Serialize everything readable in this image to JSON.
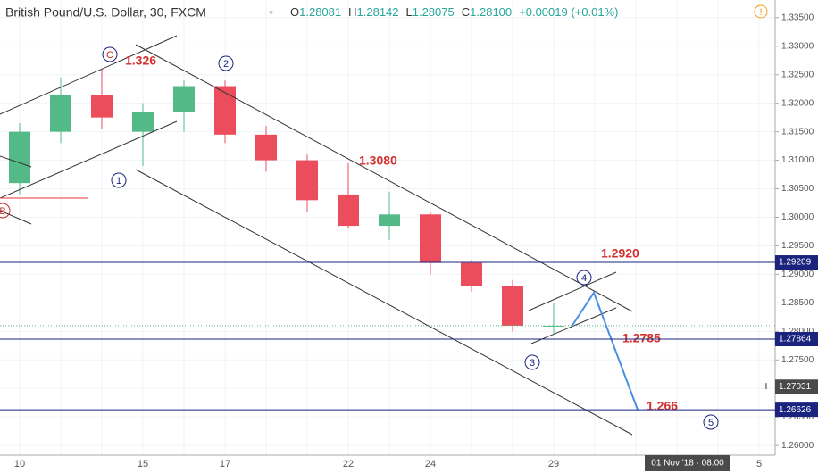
{
  "header": {
    "symbol": "British Pound/U.S. Dollar, 30, FXCM",
    "fields": [
      {
        "label": "O",
        "value": "1.28081"
      },
      {
        "label": "H",
        "value": "1.28142"
      },
      {
        "label": "L",
        "value": "1.28075"
      },
      {
        "label": "C",
        "value": "1.28100"
      }
    ],
    "change": "+0.00019 (+0.01%)"
  },
  "chart_data": {
    "type": "candlestick",
    "categories": [
      "10",
      null,
      null,
      "15",
      null,
      "17",
      null,
      null,
      "22",
      null,
      "24",
      null,
      null,
      "29",
      null,
      null,
      null,
      null,
      "5"
    ],
    "open": [
      1.306,
      1.315,
      1.3215,
      1.315,
      1.3185,
      1.323,
      1.3145,
      1.31,
      1.304,
      1.2985,
      1.3005,
      1.292,
      1.288,
      1.281,
      null,
      null,
      null,
      null,
      null
    ],
    "high": [
      1.3165,
      1.3245,
      1.326,
      1.32,
      1.324,
      1.324,
      1.316,
      1.311,
      1.3095,
      1.3045,
      1.301,
      1.2925,
      1.289,
      1.285,
      null,
      null,
      null,
      null,
      null
    ],
    "low": [
      1.304,
      1.313,
      1.3155,
      1.309,
      1.315,
      1.313,
      1.308,
      1.301,
      1.298,
      1.296,
      1.29,
      1.287,
      1.28,
      1.2795,
      null,
      null,
      null,
      null,
      null
    ],
    "close": [
      1.315,
      1.3215,
      1.3175,
      1.3185,
      1.323,
      1.3145,
      1.31,
      1.303,
      1.2985,
      1.3005,
      1.292,
      1.288,
      1.281,
      1.281,
      null,
      null,
      null,
      null,
      null
    ],
    "up_color": "#53b987",
    "down_color": "#eb4d5c",
    "ylim": [
      1.2583,
      1.3381
    ],
    "yticks": [
      {
        "value": 1.26,
        "label": "1.26000"
      },
      {
        "value": 1.265,
        "label": "1.26500"
      },
      {
        "value": 1.27,
        "label": "1.27000"
      },
      {
        "value": 1.275,
        "label": "1.27500"
      },
      {
        "value": 1.28,
        "label": "1.28000"
      },
      {
        "value": 1.285,
        "label": "1.28500"
      },
      {
        "value": 1.29,
        "label": "1.29000"
      },
      {
        "value": 1.295,
        "label": "1.29500"
      },
      {
        "value": 1.3,
        "label": "1.30000"
      },
      {
        "value": 1.305,
        "label": "1.30500"
      },
      {
        "value": 1.31,
        "label": "1.31000"
      },
      {
        "value": 1.315,
        "label": "1.31500"
      },
      {
        "value": 1.32,
        "label": "1.32000"
      },
      {
        "value": 1.325,
        "label": "1.32500"
      },
      {
        "value": 1.33,
        "label": "1.33000"
      },
      {
        "value": 1.335,
        "label": "1.33500"
      }
    ],
    "grid": true,
    "price_lines": [
      {
        "value": 1.29209,
        "color": "#1a237e"
      },
      {
        "value": 1.27864,
        "color": "#1a237e"
      },
      {
        "value": 1.26626,
        "color": "#1a237e"
      }
    ],
    "crosshair_price": 1.27031,
    "crosshair_time": "01 Nov '18 · 08:00",
    "annotations": [
      "1.326",
      "1.3080",
      "1.2920",
      "1.2785",
      "1.266"
    ],
    "wave_labels": [
      "C",
      "2",
      "B",
      "1",
      "3",
      "4",
      "5"
    ]
  }
}
